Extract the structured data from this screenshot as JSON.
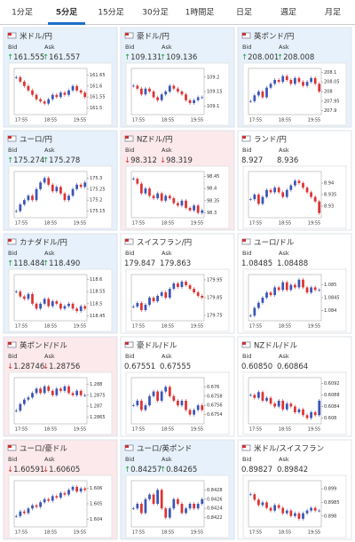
{
  "tabs": [
    "1分足",
    "5分足",
    "15分足",
    "30分足",
    "1時間足",
    "日足",
    "週足",
    "月足"
  ],
  "active_tab": 1,
  "bid_label": "Bid",
  "ask_label": "Ask",
  "x_ticks": [
    "17:55",
    "18:55",
    "19:55"
  ],
  "cards": [
    {
      "name": "米ドル/円",
      "arrow": "↑",
      "bid": "161.555",
      "ask": "161.557",
      "bg": "#e6f1fb",
      "ylim": [
        161.47,
        161.68
      ],
      "yticks": [
        161.65,
        161.6,
        161.55,
        161.5
      ],
      "closes": [
        161.64,
        161.62,
        161.6,
        161.58,
        161.56,
        161.54,
        161.53,
        161.52,
        161.54,
        161.56,
        161.55,
        161.57,
        161.56,
        161.58,
        161.6,
        161.58,
        161.57,
        161.55
      ]
    },
    {
      "name": "豪ドル/円",
      "arrow": "↑",
      "bid": "109.131",
      "ask": "109.136",
      "bg": "#e6f1fb",
      "ylim": [
        109.07,
        109.23
      ],
      "yticks": [
        109.2,
        109.15,
        109.1
      ],
      "closes": [
        109.17,
        109.16,
        109.14,
        109.16,
        109.15,
        109.13,
        109.12,
        109.14,
        109.15,
        109.17,
        109.16,
        109.15,
        109.14,
        109.12,
        109.11,
        109.12,
        109.13,
        109.13
      ]
    },
    {
      "name": "英ポンド/円",
      "arrow": "↑",
      "bid": "208.001",
      "ask": "208.008",
      "bg": "#e6f1fb",
      "ylim": [
        207.88,
        208.12
      ],
      "yticks": [
        208.1,
        208.05,
        208,
        207.95,
        207.9
      ],
      "closes": [
        207.95,
        207.98,
        208.0,
        207.97,
        208.02,
        208.04,
        208.06,
        208.05,
        208.08,
        208.06,
        208.04,
        208.07,
        208.05,
        208.03,
        208.05,
        208.07,
        208.04,
        208.0
      ]
    },
    {
      "name": "ユーロ/円",
      "arrow": "↑",
      "bid": "175.274",
      "ask": "175.278",
      "bg": "#e6f1fb",
      "ylim": [
        175.12,
        175.33
      ],
      "yticks": [
        175.3,
        175.25,
        175.2,
        175.15
      ],
      "closes": [
        175.15,
        175.18,
        175.2,
        175.22,
        175.2,
        175.25,
        175.28,
        175.3,
        175.27,
        175.24,
        175.26,
        175.23,
        175.2,
        175.22,
        175.25,
        175.27,
        175.26,
        175.28
      ]
    },
    {
      "name": "NZドル/円",
      "arrow": "↓",
      "bid": "98.312",
      "ask": "98.319",
      "bg": "#fbe9ec",
      "ylim": [
        98.28,
        98.47
      ],
      "yticks": [
        98.45,
        98.4,
        98.35,
        98.3
      ],
      "closes": [
        98.44,
        98.42,
        98.38,
        98.4,
        98.37,
        98.36,
        98.38,
        98.35,
        98.37,
        98.36,
        98.34,
        98.33,
        98.35,
        98.32,
        98.31,
        98.33,
        98.3,
        98.31
      ]
    },
    {
      "name": "ランド/円",
      "arrow": "",
      "bid": "8.927",
      "ask": "8.936",
      "bg": "#ffffff",
      "ylim": [
        8.925,
        8.945
      ],
      "yticks": [
        8.94,
        8.935,
        8.93
      ],
      "closes": [
        8.933,
        8.935,
        8.931,
        8.934,
        8.937,
        8.936,
        8.938,
        8.936,
        8.934,
        8.937,
        8.939,
        8.941,
        8.94,
        8.938,
        8.936,
        8.934,
        8.932,
        8.927
      ]
    },
    {
      "name": "カナダドル/円",
      "arrow": "↑",
      "bid": "118.484",
      "ask": "118.490",
      "bg": "#e6f1fb",
      "ylim": [
        118.43,
        118.62
      ],
      "yticks": [
        118.6,
        118.55,
        118.5,
        118.45
      ],
      "closes": [
        118.55,
        118.53,
        118.52,
        118.54,
        118.5,
        118.48,
        118.5,
        118.52,
        118.49,
        118.51,
        118.5,
        118.48,
        118.49,
        118.5,
        118.48,
        118.47,
        118.49,
        118.48
      ]
    },
    {
      "name": "スイスフラン/円",
      "arrow": "",
      "bid": "179.847",
      "ask": "179.863",
      "bg": "#ffffff",
      "ylim": [
        179.72,
        179.98
      ],
      "yticks": [
        179.95,
        179.85,
        179.75
      ],
      "closes": [
        179.8,
        179.82,
        179.78,
        179.81,
        179.85,
        179.83,
        179.86,
        179.88,
        179.85,
        179.9,
        179.93,
        179.91,
        179.94,
        179.92,
        179.9,
        179.88,
        179.86,
        179.85
      ]
    },
    {
      "name": "ユーロ/ドル",
      "arrow": "",
      "bid": "1.08485",
      "ask": "1.08488",
      "bg": "#ffffff",
      "ylim": [
        1.0836,
        1.0854
      ],
      "yticks": [
        1.085,
        1.0845,
        1.084
      ],
      "closes": [
        1.0838,
        1.0841,
        1.0843,
        1.0845,
        1.0847,
        1.0846,
        1.0849,
        1.0848,
        1.0851,
        1.0848,
        1.085,
        1.0849,
        1.0852,
        1.0849,
        1.0847,
        1.0849,
        1.0848,
        1.0848
      ]
    },
    {
      "name": "英ポンド/ドル",
      "arrow": "↓",
      "bid": "1.28746",
      "ask": "1.28756",
      "bg": "#fbe9ec",
      "ylim": [
        1.2862,
        1.2883
      ],
      "yticks": [
        1.288,
        1.2875,
        1.287,
        1.2865
      ],
      "closes": [
        1.2868,
        1.2871,
        1.2873,
        1.2874,
        1.2876,
        1.2878,
        1.2876,
        1.2879,
        1.2877,
        1.2875,
        1.2878,
        1.2877,
        1.2879,
        1.2876,
        1.2875,
        1.2877,
        1.2875,
        1.2875
      ]
    },
    {
      "name": "豪ドル/ドル",
      "arrow": "",
      "bid": "0.67551",
      "ask": "0.67555",
      "bg": "#ffffff",
      "ylim": [
        0.6752,
        0.6762
      ],
      "yticks": [
        0.676,
        0.6758,
        0.6756,
        0.6754
      ],
      "closes": [
        0.6756,
        0.6757,
        0.6755,
        0.6756,
        0.6758,
        0.6759,
        0.6757,
        0.6759,
        0.676,
        0.6758,
        0.6757,
        0.6756,
        0.6757,
        0.6755,
        0.6754,
        0.6755,
        0.6756,
        0.6755
      ]
    },
    {
      "name": "NZドル/ドル",
      "arrow": "",
      "bid": "0.60850",
      "ask": "0.60864",
      "bg": "#ffffff",
      "ylim": [
        0.6078,
        0.6094
      ],
      "yticks": [
        0.6092,
        0.6088,
        0.6084,
        0.608
      ],
      "closes": [
        0.6088,
        0.6087,
        0.6089,
        0.6086,
        0.6087,
        0.6085,
        0.6084,
        0.6086,
        0.6083,
        0.6085,
        0.6084,
        0.6082,
        0.6083,
        0.6081,
        0.608,
        0.6082,
        0.6081,
        0.6086
      ]
    },
    {
      "name": "ユーロ/豪ドル",
      "arrow": "↓",
      "bid": "1.60591",
      "ask": "1.60605",
      "bg": "#fbe9ec",
      "ylim": [
        1.6035,
        1.6065
      ],
      "yticks": [
        1.606,
        1.605,
        1.604
      ],
      "closes": [
        1.6042,
        1.6045,
        1.6044,
        1.6047,
        1.6049,
        1.6048,
        1.6051,
        1.6053,
        1.6052,
        1.6055,
        1.6054,
        1.6057,
        1.6056,
        1.6059,
        1.6061,
        1.6058,
        1.606,
        1.6059
      ]
    },
    {
      "name": "ユーロ/英ポンド",
      "arrow": "↑",
      "bid": "0.84257",
      "ask": "0.84265",
      "bg": "#e6f1fb",
      "ylim": [
        0.842,
        0.843
      ],
      "yticks": [
        0.8428,
        0.8426,
        0.8424,
        0.8422
      ],
      "closes": [
        0.8424,
        0.8425,
        0.8423,
        0.8426,
        0.8427,
        0.8425,
        0.8428,
        0.8424,
        0.8422,
        0.8424,
        0.8426,
        0.8425,
        0.8423,
        0.8424,
        0.8425,
        0.8424,
        0.8425,
        0.8426
      ]
    },
    {
      "name": "米ドル/スイスフラン",
      "arrow": "",
      "bid": "0.89827",
      "ask": "0.89842",
      "bg": "#ffffff",
      "ylim": [
        0.8976,
        0.8993
      ],
      "yticks": [
        0.899,
        0.8985,
        0.898
      ],
      "closes": [
        0.8988,
        0.8986,
        0.8984,
        0.8985,
        0.8983,
        0.8982,
        0.8984,
        0.8983,
        0.8981,
        0.8982,
        0.898,
        0.8981,
        0.8979,
        0.8981,
        0.8982,
        0.8983,
        0.8982,
        0.8982
      ]
    }
  ]
}
